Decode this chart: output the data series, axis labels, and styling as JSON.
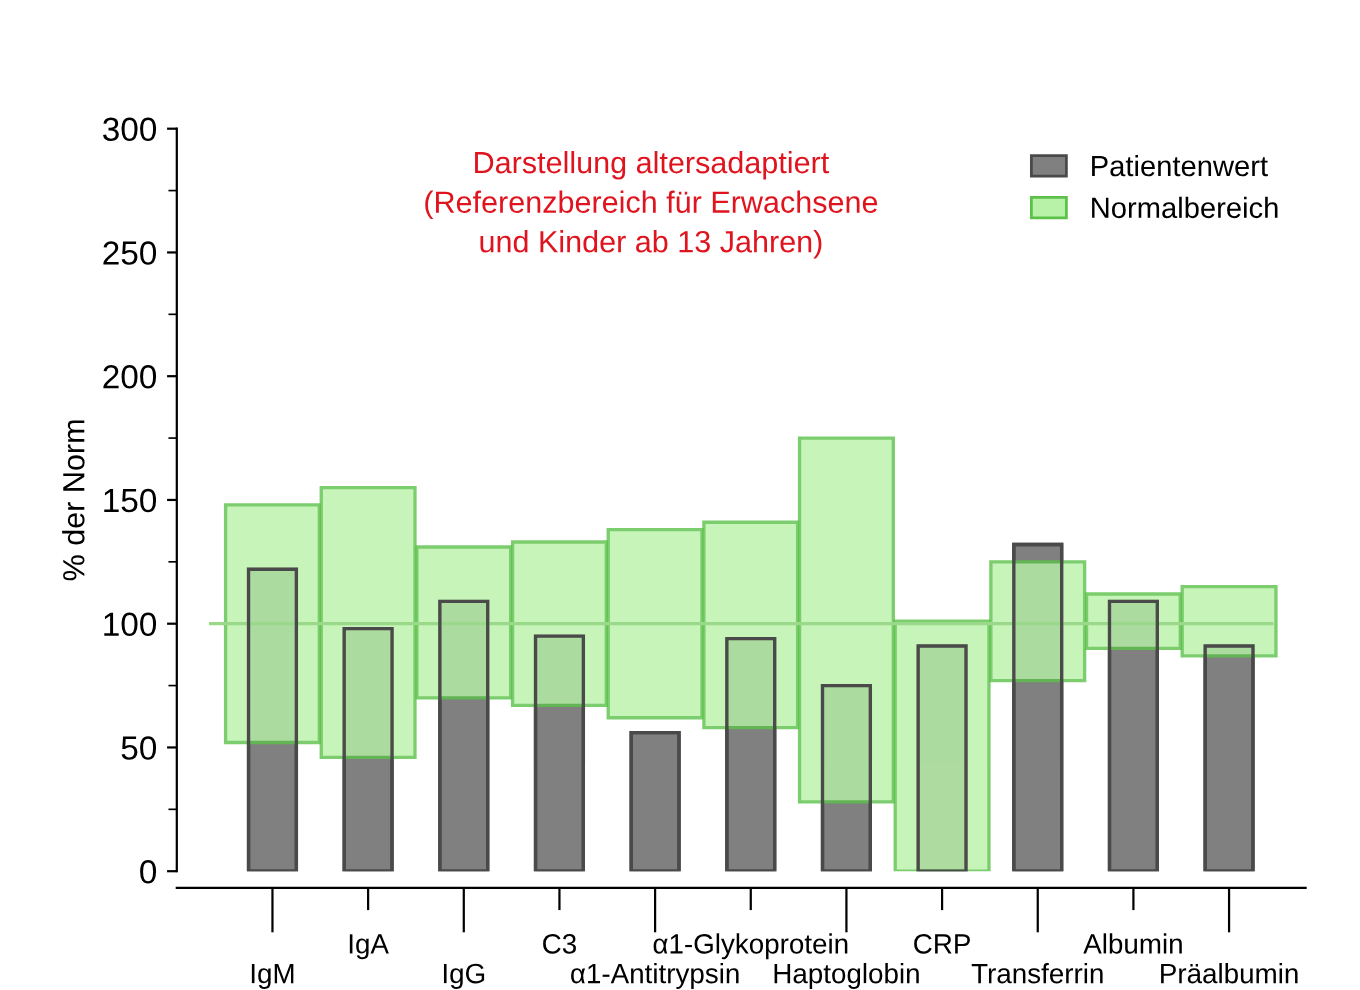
{
  "chart_data": {
    "type": "bar",
    "ylabel": "% der Norm",
    "categories": [
      "IgM",
      "IgA",
      "IgG",
      "C3",
      "α1-Antitrypsin",
      "α1-Glykoprotein",
      "Haptoglobin",
      "CRP",
      "Transferrin",
      "Albumin",
      "Präalbumin"
    ],
    "series": [
      {
        "name": "Patientenwert",
        "color": "#808080",
        "values": [
          122,
          98,
          109,
          95,
          56,
          94,
          75,
          91,
          132,
          109,
          91
        ]
      },
      {
        "name": "Normalbereich",
        "color": "#b8f2a8",
        "base": [
          52,
          46,
          70,
          67,
          62,
          58,
          28,
          0,
          77,
          90,
          87
        ],
        "values": [
          96,
          109,
          61,
          66,
          76,
          83,
          147,
          101,
          48,
          22,
          28
        ]
      }
    ],
    "ylim": [
      0,
      300
    ],
    "yticks": [
      0,
      50,
      100,
      150,
      200,
      250,
      300
    ],
    "ref_lines": [
      {
        "axis": "y",
        "value": 100,
        "color": "#9ad88a"
      }
    ],
    "annotations": [
      "Darstellung altersadaptiert\n(Referenzbereich für Erwachsene\nund Kinder ab 13 Jahren)"
    ],
    "legend": "top right",
    "grid": false
  }
}
